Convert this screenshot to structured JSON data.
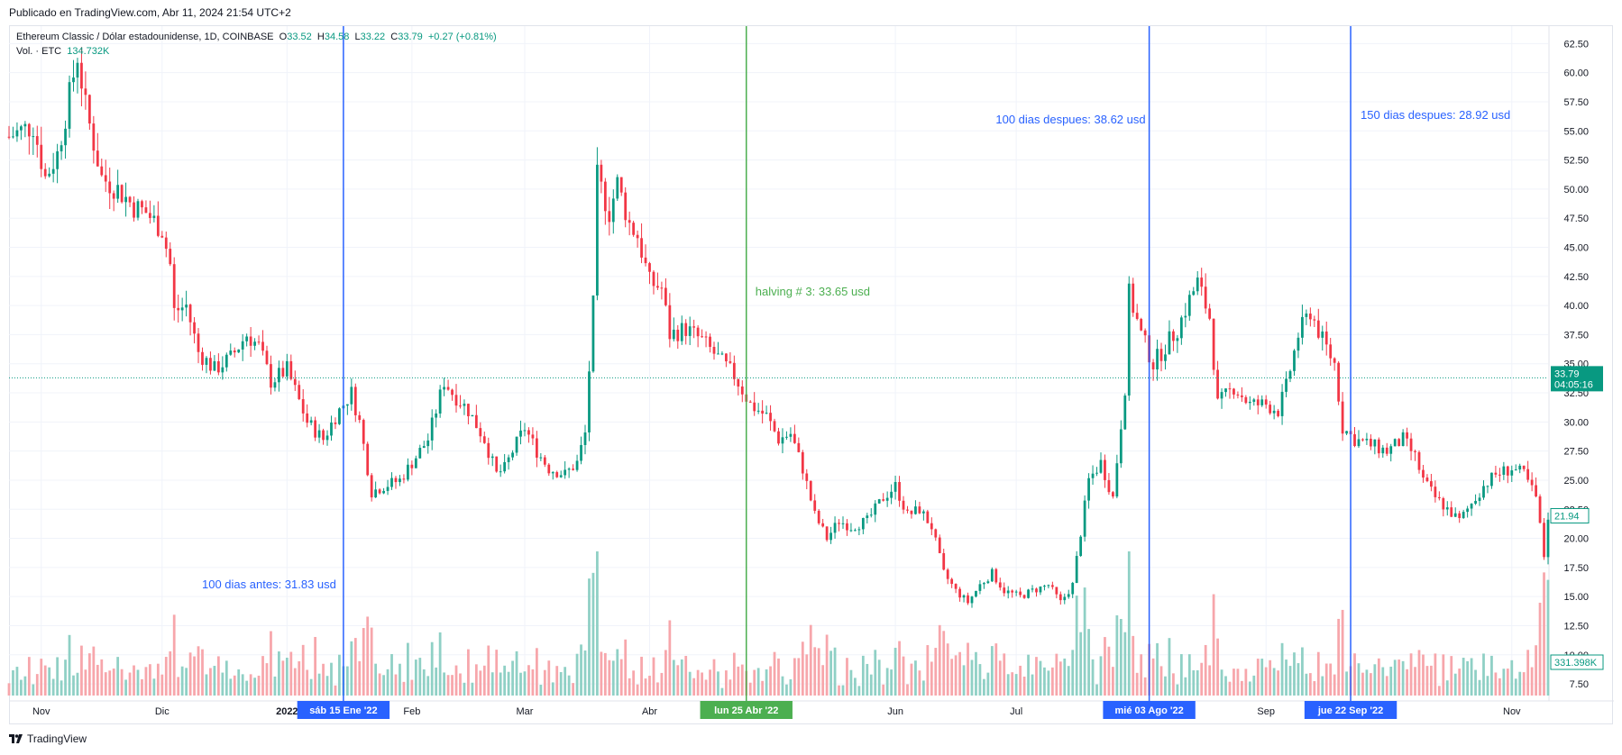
{
  "published": "Publicado en TradingView.com, Abr 11, 2024 21:54 UTC+2",
  "footer_brand": "TradingView",
  "legend": {
    "symbol": "Ethereum Classic / Dólar estadounidense, 1D, COINBASE",
    "o_label": "O",
    "o": "33.52",
    "h_label": "H",
    "h": "34.58",
    "l_label": "L",
    "l": "33.22",
    "c_label": "C",
    "c": "33.79",
    "change": "+0.27 (+0.81%)",
    "vol_label": "Vol. · ETC",
    "vol": "134.732K"
  },
  "colors": {
    "up": "#089981",
    "down": "#f23645",
    "vol_up": "#8fd0c5",
    "vol_down": "#f7a6ab",
    "marker_blue": "#2962ff",
    "marker_green": "#4caf50",
    "grid": "#f0f3fa"
  },
  "chart_data": {
    "type": "candlestick",
    "symbol": "ETC/USD",
    "interval": "1D",
    "ylim": [
      6.5,
      64
    ],
    "y_ticks": [
      7.5,
      10.0,
      12.5,
      15.0,
      17.5,
      20.0,
      22.5,
      25.0,
      27.5,
      30.0,
      32.5,
      35.0,
      37.5,
      40.0,
      42.5,
      45.0,
      47.5,
      50.0,
      52.5,
      55.0,
      57.5,
      60.0,
      62.5
    ],
    "x_start": "2021-10-24",
    "x_end": "2022-11-10",
    "x_ticks": [
      {
        "date": "2021-11-01",
        "label": "Nov"
      },
      {
        "date": "2021-12-01",
        "label": "Dic"
      },
      {
        "date": "2022-01-01",
        "label": "2022"
      },
      {
        "date": "2022-02-01",
        "label": "Feb"
      },
      {
        "date": "2022-03-01",
        "label": "Mar"
      },
      {
        "date": "2022-04-01",
        "label": "Abr"
      },
      {
        "date": "2022-06-01",
        "label": "Jun"
      },
      {
        "date": "2022-07-01",
        "label": "Jul"
      },
      {
        "date": "2022-09-01",
        "label": "Sep"
      },
      {
        "date": "2022-11-01",
        "label": "Nov"
      }
    ],
    "price_path": [
      [
        "2021-10-24",
        54.5
      ],
      [
        "2021-10-30",
        55.5
      ],
      [
        "2021-11-02",
        51.0
      ],
      [
        "2021-11-05",
        53.0
      ],
      [
        "2021-11-08",
        58.0
      ],
      [
        "2021-11-10",
        61.5
      ],
      [
        "2021-11-12",
        57.0
      ],
      [
        "2021-11-16",
        51.0
      ],
      [
        "2021-11-20",
        50.0
      ],
      [
        "2021-11-24",
        48.5
      ],
      [
        "2021-11-27",
        48.0
      ],
      [
        "2021-12-01",
        46.5
      ],
      [
        "2021-12-03",
        43.5
      ],
      [
        "2021-12-04",
        39.5
      ],
      [
        "2021-12-07",
        40.0
      ],
      [
        "2021-12-10",
        36.0
      ],
      [
        "2021-12-14",
        34.5
      ],
      [
        "2021-12-18",
        35.5
      ],
      [
        "2021-12-22",
        37.5
      ],
      [
        "2021-12-25",
        36.5
      ],
      [
        "2021-12-28",
        33.5
      ],
      [
        "2022-01-01",
        34.5
      ],
      [
        "2022-01-06",
        30.0
      ],
      [
        "2022-01-10",
        28.5
      ],
      [
        "2022-01-13",
        30.5
      ],
      [
        "2022-01-17",
        32.5
      ],
      [
        "2022-01-19",
        30.0
      ],
      [
        "2022-01-22",
        24.0
      ],
      [
        "2022-01-25",
        24.5
      ],
      [
        "2022-01-29",
        25.0
      ],
      [
        "2022-02-02",
        27.0
      ],
      [
        "2022-02-05",
        28.5
      ],
      [
        "2022-02-09",
        33.5
      ],
      [
        "2022-02-11",
        32.5
      ],
      [
        "2022-02-15",
        31.0
      ],
      [
        "2022-02-19",
        28.5
      ],
      [
        "2022-02-22",
        25.5
      ],
      [
        "2022-02-24",
        26.0
      ],
      [
        "2022-02-26",
        27.5
      ],
      [
        "2022-03-01",
        29.5
      ],
      [
        "2022-03-04",
        27.5
      ],
      [
        "2022-03-07",
        26.0
      ],
      [
        "2022-03-11",
        25.5
      ],
      [
        "2022-03-14",
        26.5
      ],
      [
        "2022-03-16",
        29.0
      ],
      [
        "2022-03-18",
        40.0
      ],
      [
        "2022-03-19",
        51.0
      ],
      [
        "2022-03-22",
        48.0
      ],
      [
        "2022-03-24",
        50.5
      ],
      [
        "2022-03-27",
        47.0
      ],
      [
        "2022-03-29",
        46.0
      ],
      [
        "2022-04-01",
        42.0
      ],
      [
        "2022-04-04",
        41.5
      ],
      [
        "2022-04-06",
        37.5
      ],
      [
        "2022-04-10",
        38.0
      ],
      [
        "2022-04-14",
        37.0
      ],
      [
        "2022-04-18",
        35.5
      ],
      [
        "2022-04-22",
        34.0
      ],
      [
        "2022-04-26",
        31.5
      ],
      [
        "2022-04-30",
        30.5
      ],
      [
        "2022-05-03",
        28.5
      ],
      [
        "2022-05-06",
        29.0
      ],
      [
        "2022-05-09",
        26.0
      ],
      [
        "2022-05-12",
        22.0
      ],
      [
        "2022-05-15",
        20.0
      ],
      [
        "2022-05-18",
        21.5
      ],
      [
        "2022-05-21",
        21.0
      ],
      [
        "2022-05-25",
        21.5
      ],
      [
        "2022-05-29",
        23.5
      ],
      [
        "2022-06-01",
        24.5
      ],
      [
        "2022-06-04",
        22.0
      ],
      [
        "2022-06-07",
        22.5
      ],
      [
        "2022-06-10",
        21.0
      ],
      [
        "2022-06-13",
        17.0
      ],
      [
        "2022-06-16",
        15.5
      ],
      [
        "2022-06-19",
        14.5
      ],
      [
        "2022-06-22",
        16.0
      ],
      [
        "2022-06-25",
        17.0
      ],
      [
        "2022-06-28",
        15.5
      ],
      [
        "2022-07-02",
        15.0
      ],
      [
        "2022-07-05",
        15.5
      ],
      [
        "2022-07-09",
        16.0
      ],
      [
        "2022-07-12",
        14.5
      ],
      [
        "2022-07-15",
        16.0
      ],
      [
        "2022-07-17",
        20.5
      ],
      [
        "2022-07-19",
        25.0
      ],
      [
        "2022-07-22",
        26.5
      ],
      [
        "2022-07-25",
        23.5
      ],
      [
        "2022-07-28",
        33.0
      ],
      [
        "2022-07-29",
        41.0
      ],
      [
        "2022-08-01",
        37.5
      ],
      [
        "2022-08-04",
        35.0
      ],
      [
        "2022-08-07",
        36.5
      ],
      [
        "2022-08-10",
        38.0
      ],
      [
        "2022-08-13",
        40.5
      ],
      [
        "2022-08-15",
        42.0
      ],
      [
        "2022-08-18",
        39.0
      ],
      [
        "2022-08-20",
        31.5
      ],
      [
        "2022-08-24",
        33.0
      ],
      [
        "2022-08-28",
        31.5
      ],
      [
        "2022-09-01",
        31.5
      ],
      [
        "2022-09-04",
        31.0
      ],
      [
        "2022-09-06",
        33.0
      ],
      [
        "2022-09-09",
        37.5
      ],
      [
        "2022-09-12",
        39.5
      ],
      [
        "2022-09-15",
        37.0
      ],
      [
        "2022-09-18",
        35.0
      ],
      [
        "2022-09-20",
        29.5
      ],
      [
        "2022-09-23",
        28.5
      ],
      [
        "2022-09-27",
        28.0
      ],
      [
        "2022-10-01",
        27.5
      ],
      [
        "2022-10-05",
        28.5
      ],
      [
        "2022-10-08",
        27.0
      ],
      [
        "2022-10-10",
        25.0
      ],
      [
        "2022-10-13",
        23.5
      ],
      [
        "2022-10-16",
        22.5
      ],
      [
        "2022-10-19",
        21.5
      ],
      [
        "2022-10-22",
        23.0
      ],
      [
        "2022-10-25",
        24.5
      ],
      [
        "2022-10-28",
        25.5
      ],
      [
        "2022-11-01",
        26.0
      ],
      [
        "2022-11-04",
        25.5
      ],
      [
        "2022-11-07",
        23.5
      ],
      [
        "2022-11-09",
        18.5
      ],
      [
        "2022-11-10",
        21.94
      ]
    ],
    "current_price": "33.79",
    "countdown": "04:05:16",
    "last_bar_price": "21.94",
    "volume_axis_label": "331.398K",
    "markers": [
      {
        "date": "2022-01-15",
        "axis_label": "sáb 15 Ene '22",
        "text": "100 dias antes: 31.83 usd",
        "color": "blue"
      },
      {
        "date": "2022-04-25",
        "axis_label": "lun 25 Abr '22",
        "text": "halving # 3: 33.65 usd",
        "color": "green"
      },
      {
        "date": "2022-08-03",
        "axis_label": "mié 03 Ago '22",
        "text": "100 dias despues: 38.62 usd",
        "color": "blue"
      },
      {
        "date": "2022-09-22",
        "axis_label": "jue 22 Sep '22",
        "text": "150 dias despues: 28.92 usd",
        "color": "blue"
      }
    ]
  }
}
